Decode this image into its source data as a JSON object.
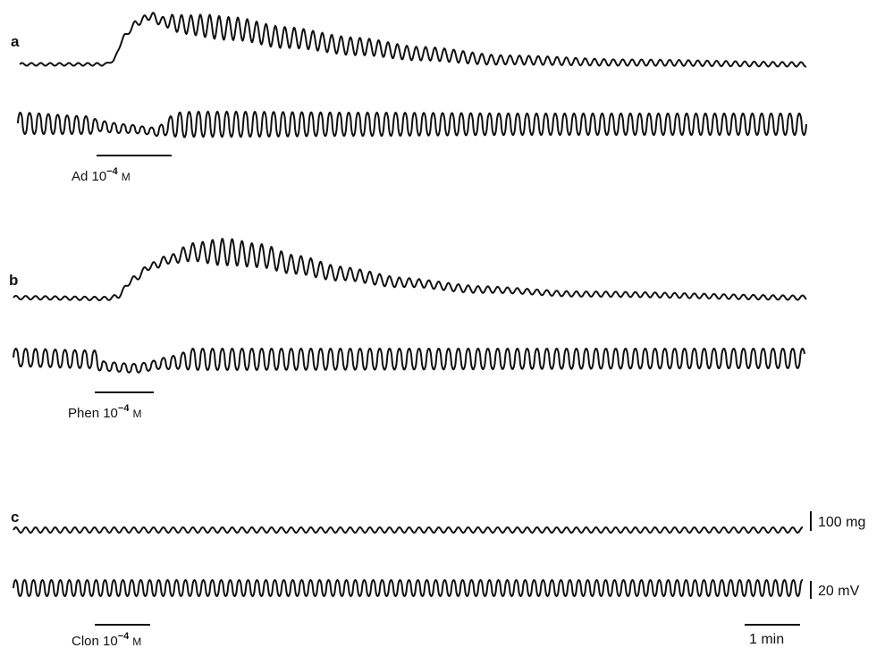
{
  "panels": [
    {
      "id": "a",
      "label": "a",
      "drug": {
        "name": "Ad",
        "exponent": "−4",
        "unit": "M"
      }
    },
    {
      "id": "b",
      "label": "b",
      "drug": {
        "name": "Phen",
        "exponent": "−4",
        "unit": "M"
      }
    },
    {
      "id": "c",
      "label": "c",
      "drug": {
        "name": "Clon",
        "exponent": "−4",
        "unit": "M"
      }
    }
  ],
  "scale_bars": {
    "tension": "100 mg",
    "potential": "20 mV",
    "time": "1 min"
  },
  "colors": {
    "trace": "#111111",
    "background": "#ffffff"
  }
}
